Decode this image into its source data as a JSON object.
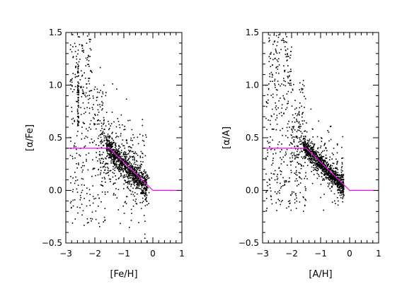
{
  "chart_data": [
    {
      "type": "scatter",
      "xlabel": "[Fe/H]",
      "ylabel": "[α/Fe]",
      "xlim": [
        -3,
        1
      ],
      "ylim": [
        -0.5,
        1.5
      ],
      "xticks": [
        "−3",
        "−2",
        "−1",
        "0",
        "1"
      ],
      "yticks": [
        "−0.5",
        "0.0",
        "0.5",
        "1.0",
        "1.5"
      ],
      "grid": false,
      "colors": {
        "points": "#000000",
        "reference_line": "#ff00ff"
      },
      "reference_line": {
        "x": [
          -3.0,
          -1.5,
          0.0,
          1.0
        ],
        "y": [
          0.4,
          0.4,
          0.0,
          0.0
        ]
      },
      "point_cloud": {
        "n_points": 1600,
        "regions": [
          {
            "share": 0.52,
            "x_range": [
              -1.6,
              -0.2
            ],
            "trend": {
              "x0": -1.5,
              "y0": 0.4,
              "slope": -0.29
            },
            "scatter": 0.06
          },
          {
            "share": 0.23,
            "x_range": [
              -1.9,
              -0.1
            ],
            "trend": {
              "x0": -1.5,
              "y0": 0.35,
              "slope": -0.2
            },
            "scatter": 0.22
          },
          {
            "share": 0.15,
            "x_range": [
              -2.85,
              -1.6
            ],
            "y_range": [
              -0.35,
              1.0
            ]
          },
          {
            "share": 0.06,
            "x_range": [
              -2.85,
              -2.1
            ],
            "y_range": [
              0.9,
              1.48
            ]
          },
          {
            "share": 0.04,
            "x_range": [
              -2.6,
              -2.55
            ],
            "y_range": [
              0.55,
              1.2
            ]
          }
        ]
      }
    },
    {
      "type": "scatter",
      "xlabel": "[A/H]",
      "ylabel": "[α/A]",
      "xlim": [
        -3,
        1
      ],
      "ylim": [
        -0.5,
        1.5
      ],
      "xticks": [
        "−3",
        "−2",
        "−1",
        "0",
        "1"
      ],
      "yticks": [
        "−0.5",
        "0.0",
        "0.5",
        "1.0",
        "1.5"
      ],
      "grid": false,
      "colors": {
        "points": "#000000",
        "reference_line": "#ff00ff"
      },
      "reference_line": {
        "x": [
          -3.0,
          -1.5,
          0.0,
          1.0
        ],
        "y": [
          0.4,
          0.4,
          0.0,
          0.0
        ]
      },
      "point_cloud": {
        "n_points": 1600,
        "regions": [
          {
            "share": 0.55,
            "x_range": [
              -1.6,
              -0.2
            ],
            "trend": {
              "x0": -1.5,
              "y0": 0.4,
              "slope": -0.29
            },
            "scatter": 0.04
          },
          {
            "share": 0.2,
            "x_range": [
              -2.0,
              -0.2
            ],
            "trend": {
              "x0": -1.5,
              "y0": 0.38,
              "slope": -0.2
            },
            "scatter": 0.15
          },
          {
            "share": 0.19,
            "x_range": [
              -2.9,
              -1.5
            ],
            "y_range": [
              -0.2,
              1.05
            ]
          },
          {
            "share": 0.06,
            "x_range": [
              -2.8,
              -2.0
            ],
            "y_range": [
              1.0,
              1.48
            ]
          }
        ]
      }
    }
  ]
}
